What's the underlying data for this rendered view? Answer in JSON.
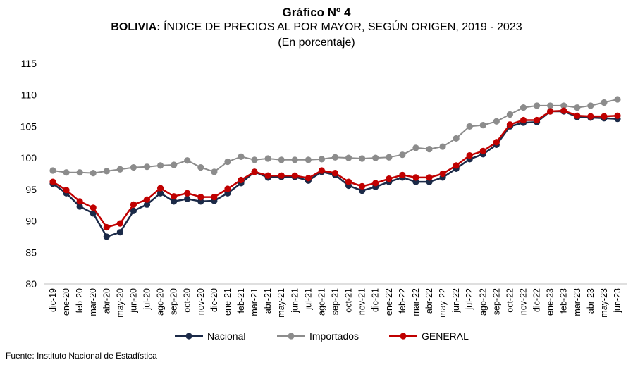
{
  "header": {
    "title": "Gráfico Nº 4",
    "subtitle_bold": "BOLIVIA:",
    "subtitle_rest": " ÍNDICE DE PRECIOS AL POR MAYOR, SEGÚN ORIGEN, 2019 - 2023",
    "units": "(En porcentaje)"
  },
  "footer": {
    "source": "Fuente: Instituto Nacional de Estadística"
  },
  "chart_data": {
    "type": "line",
    "title": "Gráfico Nº 4",
    "ylim": [
      80,
      115
    ],
    "yticks": [
      80,
      85,
      90,
      95,
      100,
      105,
      110,
      115
    ],
    "grid": false,
    "legend_position": "bottom",
    "categories": [
      "dic-19",
      "ene-20",
      "feb-20",
      "mar-20",
      "abr-20",
      "may-20",
      "jun-20",
      "jul-20",
      "ago-20",
      "sep-20",
      "oct-20",
      "nov-20",
      "dic-20",
      "ene-21",
      "feb-21",
      "mar-21",
      "abr-21",
      "may-21",
      "jun-21",
      "jul-21",
      "ago-21",
      "sep-21",
      "oct-21",
      "nov-21",
      "dic-21",
      "ene-22",
      "feb-22",
      "mar-22",
      "abr-22",
      "may-22",
      "jun-22",
      "jul-22",
      "ago-22",
      "sep-22",
      "oct-22",
      "nov-22",
      "dic-22",
      "ene-23",
      "feb-23",
      "mar-23",
      "abr-23",
      "may-23",
      "jun-23"
    ],
    "series": [
      {
        "name": "Nacional",
        "color": "#1b2a48",
        "values": [
          95.9,
          94.4,
          92.3,
          91.2,
          87.5,
          88.2,
          91.6,
          92.6,
          94.4,
          93.1,
          93.5,
          93.1,
          93.2,
          94.4,
          96.0,
          97.8,
          96.9,
          97.0,
          97.0,
          96.4,
          97.8,
          97.3,
          95.6,
          94.8,
          95.4,
          96.2,
          96.9,
          96.2,
          96.2,
          96.9,
          98.3,
          99.8,
          100.6,
          102.1,
          105.0,
          105.6,
          105.7,
          107.4,
          107.4,
          106.5,
          106.4,
          106.3,
          106.2
        ]
      },
      {
        "name": "Importados",
        "color": "#8c8c8c",
        "values": [
          98.0,
          97.7,
          97.7,
          97.6,
          97.9,
          98.2,
          98.5,
          98.6,
          98.8,
          98.9,
          99.6,
          98.5,
          97.8,
          99.4,
          100.2,
          99.7,
          99.9,
          99.7,
          99.7,
          99.7,
          99.8,
          100.1,
          100.0,
          99.9,
          100.0,
          100.1,
          100.5,
          101.6,
          101.4,
          101.8,
          103.1,
          105.0,
          105.2,
          105.8,
          106.9,
          108.0,
          108.3,
          108.3,
          108.3,
          108.0,
          108.3,
          108.8,
          109.3
        ]
      },
      {
        "name": "GENERAL",
        "color": "#c00000",
        "values": [
          96.2,
          94.9,
          93.1,
          92.1,
          89.0,
          89.6,
          92.6,
          93.4,
          95.2,
          93.9,
          94.4,
          93.8,
          93.8,
          95.1,
          96.5,
          97.8,
          97.2,
          97.2,
          97.2,
          96.8,
          98.0,
          97.6,
          96.2,
          95.5,
          96.0,
          96.7,
          97.3,
          96.9,
          96.9,
          97.5,
          98.8,
          100.4,
          101.1,
          102.5,
          105.3,
          106.0,
          106.0,
          107.4,
          107.5,
          106.7,
          106.6,
          106.6,
          106.7
        ]
      }
    ]
  }
}
